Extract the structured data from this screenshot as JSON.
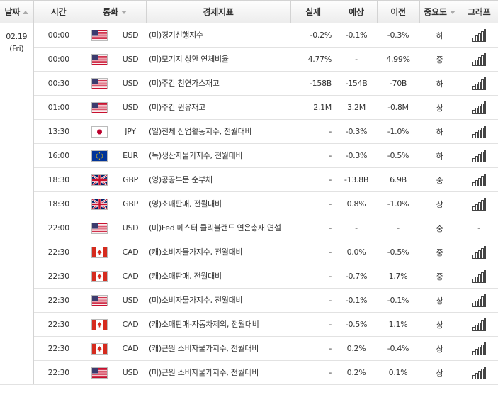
{
  "header": {
    "date": "날짜",
    "time": "시간",
    "currency": "통화",
    "indicator": "경제지표",
    "actual": "실제",
    "forecast": "예상",
    "previous": "이전",
    "importance": "중요도",
    "graph": "그래프"
  },
  "date_group": {
    "date": "02.19",
    "weekday": "(Fri)"
  },
  "rows": [
    {
      "time": "00:00",
      "flag": "us-flag-icon",
      "currency": "USD",
      "name": "(미)경기선행지수",
      "actual": "-0.2%",
      "forecast": "-0.1%",
      "previous": "-0.3%",
      "importance": "하",
      "graph": true
    },
    {
      "time": "00:00",
      "flag": "us-flag-icon",
      "currency": "USD",
      "name": "(미)모기지 상환 연체비율",
      "actual": "4.77%",
      "forecast": "-",
      "previous": "4.99%",
      "importance": "중",
      "graph": true
    },
    {
      "time": "00:30",
      "flag": "us-flag-icon",
      "currency": "USD",
      "name": "(미)주간 천연가스재고",
      "actual": "-158B",
      "forecast": "-154B",
      "previous": "-70B",
      "importance": "하",
      "graph": true
    },
    {
      "time": "01:00",
      "flag": "us-flag-icon",
      "currency": "USD",
      "name": "(미)주간 원유재고",
      "actual": "2.1M",
      "forecast": "3.2M",
      "previous": "-0.8M",
      "importance": "상",
      "graph": true
    },
    {
      "time": "13:30",
      "flag": "jp-flag-icon",
      "currency": "JPY",
      "name": "(일)전체 산업활동지수, 전월대비",
      "actual": "-",
      "forecast": "-0.3%",
      "previous": "-1.0%",
      "importance": "하",
      "graph": true
    },
    {
      "time": "16:00",
      "flag": "eu-flag-icon",
      "currency": "EUR",
      "name": "(독)생산자물가지수, 전월대비",
      "actual": "-",
      "forecast": "-0.3%",
      "previous": "-0.5%",
      "importance": "하",
      "graph": true
    },
    {
      "time": "18:30",
      "flag": "gb-flag-icon",
      "currency": "GBP",
      "name": "(영)공공부문 순부채",
      "actual": "-",
      "forecast": "-13.8B",
      "previous": "6.9B",
      "importance": "중",
      "graph": true
    },
    {
      "time": "18:30",
      "flag": "gb-flag-icon",
      "currency": "GBP",
      "name": "(영)소매판매, 전월대비",
      "actual": "-",
      "forecast": "0.8%",
      "previous": "-1.0%",
      "importance": "상",
      "graph": true
    },
    {
      "time": "22:00",
      "flag": "us-flag-icon",
      "currency": "USD",
      "name": "(미)Fed 메스터 클리블랜드 연은총재 연설",
      "actual": "-",
      "forecast": "-",
      "previous": "-",
      "importance": "중",
      "graph": false,
      "graph_text": "-"
    },
    {
      "time": "22:30",
      "flag": "ca-flag-icon",
      "currency": "CAD",
      "name": "(캐)소비자물가지수, 전월대비",
      "actual": "-",
      "forecast": "0.0%",
      "previous": "-0.5%",
      "importance": "중",
      "graph": true
    },
    {
      "time": "22:30",
      "flag": "ca-flag-icon",
      "currency": "CAD",
      "name": "(캐)소매판매, 전월대비",
      "actual": "-",
      "forecast": "-0.7%",
      "previous": "1.7%",
      "importance": "중",
      "graph": true
    },
    {
      "time": "22:30",
      "flag": "us-flag-icon",
      "currency": "USD",
      "name": "(미)소비자물가지수, 전월대비",
      "actual": "-",
      "forecast": "-0.1%",
      "previous": "-0.1%",
      "importance": "상",
      "graph": true
    },
    {
      "time": "22:30",
      "flag": "ca-flag-icon",
      "currency": "CAD",
      "name": "(캐)소매판매-자동차제외, 전월대비",
      "actual": "-",
      "forecast": "-0.5%",
      "previous": "1.1%",
      "importance": "상",
      "graph": true
    },
    {
      "time": "22:30",
      "flag": "ca-flag-icon",
      "currency": "CAD",
      "name": "(캐)근원 소비자물가지수, 전월대비",
      "actual": "-",
      "forecast": "0.2%",
      "previous": "-0.4%",
      "importance": "상",
      "graph": true
    },
    {
      "time": "22:30",
      "flag": "us-flag-icon",
      "currency": "USD",
      "name": "(미)근원 소비자물가지수, 전월대비",
      "actual": "-",
      "forecast": "0.2%",
      "previous": "0.1%",
      "importance": "상",
      "graph": true
    }
  ]
}
